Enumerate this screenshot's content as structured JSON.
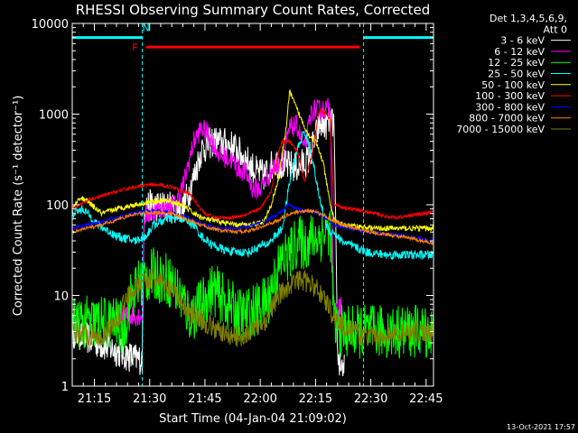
{
  "chart_data": {
    "type": "line",
    "title": "RHESSI Observing Summary Count Rates, Corrected",
    "xlabel": "Start Time (04-Jan-04 21:09:02)",
    "ylabel": "Corrected Count Rate (s⁻¹ detector⁻¹)",
    "x_unit": "minutes after 21:09:02",
    "xlim": [
      0,
      98
    ],
    "ylim": [
      1,
      10000
    ],
    "y_scale": "log",
    "grid": false,
    "legend_position": "top-right outside plot",
    "x_ticks": [
      {
        "pos": 6,
        "label": "21:15"
      },
      {
        "pos": 21,
        "label": "21:30"
      },
      {
        "pos": 36,
        "label": "21:45"
      },
      {
        "pos": 51,
        "label": "22:00"
      },
      {
        "pos": 66,
        "label": "22:15"
      },
      {
        "pos": 81,
        "label": "22:30"
      },
      {
        "pos": 96,
        "label": "22:45"
      }
    ],
    "y_ticks": [
      {
        "value": 1,
        "label": "1"
      },
      {
        "value": 10,
        "label": "10"
      },
      {
        "value": 100,
        "label": "100"
      },
      {
        "value": 1000,
        "label": "1000"
      },
      {
        "value": 10000,
        "label": "10000"
      }
    ],
    "legend_header": [
      "Det 1,3,4,5,6,9,",
      "Att 0"
    ],
    "series": [
      {
        "name": "3 - 6 keV",
        "color": "#ffffff",
        "noise": 0.18,
        "points": [
          [
            0,
            4
          ],
          [
            17,
            2
          ],
          [
            19,
            2
          ],
          [
            19.5,
            100
          ],
          [
            26,
            95
          ],
          [
            30,
            90
          ],
          [
            33,
            200
          ],
          [
            35,
            400
          ],
          [
            38,
            500
          ],
          [
            41,
            480
          ],
          [
            44,
            430
          ],
          [
            47,
            320
          ],
          [
            50,
            230
          ],
          [
            52,
            210
          ],
          [
            55,
            300
          ],
          [
            58,
            270
          ],
          [
            61,
            260
          ],
          [
            64,
            310
          ],
          [
            67,
            750
          ],
          [
            70,
            800
          ],
          [
            71,
            800
          ],
          [
            72,
            2
          ],
          [
            74,
            1.5
          ]
        ]
      },
      {
        "name": "6 - 12 keV",
        "color": "#ff00ff",
        "noise": 0.12,
        "points": [
          [
            12,
            6
          ],
          [
            17,
            6
          ],
          [
            19,
            6
          ],
          [
            19.5,
            75
          ],
          [
            24,
            90
          ],
          [
            28,
            100
          ],
          [
            30,
            160
          ],
          [
            33,
            500
          ],
          [
            35,
            700
          ],
          [
            37,
            600
          ],
          [
            40,
            350
          ],
          [
            43,
            320
          ],
          [
            45,
            250
          ],
          [
            47,
            230
          ],
          [
            49,
            150
          ],
          [
            51,
            150
          ],
          [
            53,
            200
          ],
          [
            55,
            270
          ],
          [
            57,
            300
          ],
          [
            59,
            700
          ],
          [
            61,
            750
          ],
          [
            63,
            400
          ],
          [
            65,
            1100
          ],
          [
            67,
            1100
          ],
          [
            69,
            1150
          ],
          [
            70,
            1200
          ],
          [
            71,
            6
          ],
          [
            73,
            8
          ]
        ]
      },
      {
        "name": "12 - 25 keV",
        "color": "#00ff00",
        "noise": 0.3,
        "points": [
          [
            0,
            5
          ],
          [
            8,
            5
          ],
          [
            12,
            5
          ],
          [
            14,
            4
          ],
          [
            16,
            10
          ],
          [
            19,
            15
          ],
          [
            22,
            17
          ],
          [
            26,
            15
          ],
          [
            28,
            12
          ],
          [
            30,
            9
          ],
          [
            31,
            7
          ],
          [
            32,
            6
          ],
          [
            34,
            7
          ],
          [
            36,
            9
          ],
          [
            38,
            12
          ],
          [
            40,
            10
          ],
          [
            42,
            8
          ],
          [
            44,
            7
          ],
          [
            46,
            6
          ],
          [
            50,
            7
          ],
          [
            53,
            9
          ],
          [
            55,
            16
          ],
          [
            57,
            25
          ],
          [
            59,
            28
          ],
          [
            61,
            40
          ],
          [
            63,
            36
          ],
          [
            65,
            42
          ],
          [
            67,
            45
          ],
          [
            69,
            50
          ],
          [
            70,
            55
          ],
          [
            71,
            5
          ],
          [
            73,
            4
          ],
          [
            98,
            4
          ]
        ]
      },
      {
        "name": "25 - 50 keV",
        "color": "#00ffff",
        "noise": 0.05,
        "points": [
          [
            0,
            80
          ],
          [
            3,
            90
          ],
          [
            7,
            60
          ],
          [
            12,
            45
          ],
          [
            17,
            40
          ],
          [
            20,
            45
          ],
          [
            22,
            60
          ],
          [
            26,
            70
          ],
          [
            30,
            70
          ],
          [
            33,
            60
          ],
          [
            35,
            45
          ],
          [
            38,
            36
          ],
          [
            41,
            32
          ],
          [
            44,
            30
          ],
          [
            48,
            30
          ],
          [
            51,
            35
          ],
          [
            53,
            37
          ],
          [
            55,
            45
          ],
          [
            57,
            55
          ],
          [
            59,
            180
          ],
          [
            61,
            400
          ],
          [
            63,
            650
          ],
          [
            65,
            350
          ],
          [
            67,
            120
          ],
          [
            69,
            60
          ],
          [
            70,
            50
          ],
          [
            71,
            50
          ],
          [
            73,
            40
          ],
          [
            76,
            35
          ],
          [
            80,
            30
          ],
          [
            85,
            28
          ],
          [
            98,
            28
          ]
        ]
      },
      {
        "name": "50 - 100 keV",
        "color": "#ffff00",
        "noise": 0.03,
        "points": [
          [
            0,
            90
          ],
          [
            2,
            120
          ],
          [
            4,
            110
          ],
          [
            8,
            80
          ],
          [
            12,
            90
          ],
          [
            17,
            100
          ],
          [
            22,
            110
          ],
          [
            26,
            110
          ],
          [
            30,
            100
          ],
          [
            33,
            80
          ],
          [
            36,
            70
          ],
          [
            40,
            65
          ],
          [
            44,
            60
          ],
          [
            48,
            60
          ],
          [
            52,
            65
          ],
          [
            54,
            100
          ],
          [
            56,
            200
          ],
          [
            58,
            700
          ],
          [
            59,
            1800
          ],
          [
            60,
            1400
          ],
          [
            62,
            900
          ],
          [
            64,
            600
          ],
          [
            66,
            500
          ],
          [
            68,
            300
          ],
          [
            70,
            100
          ],
          [
            71,
            70
          ],
          [
            73,
            60
          ],
          [
            77,
            58
          ],
          [
            82,
            55
          ],
          [
            92,
            55
          ],
          [
            98,
            55
          ]
        ]
      },
      {
        "name": "100 - 300 keV",
        "color": "#ff0000",
        "noise": 0.02,
        "points": [
          [
            0,
            90
          ],
          [
            4,
            110
          ],
          [
            8,
            125
          ],
          [
            12,
            140
          ],
          [
            16,
            155
          ],
          [
            20,
            165
          ],
          [
            24,
            165
          ],
          [
            28,
            155
          ],
          [
            32,
            130
          ],
          [
            34,
            100
          ],
          [
            36,
            80
          ],
          [
            39,
            72
          ],
          [
            43,
            72
          ],
          [
            47,
            78
          ],
          [
            51,
            90
          ],
          [
            54,
            140
          ],
          [
            56,
            400
          ],
          [
            57,
            500
          ],
          [
            59,
            500
          ],
          [
            61,
            400
          ],
          [
            63,
            180
          ],
          [
            65,
            350
          ],
          [
            67,
            1100
          ],
          [
            69,
            1000
          ],
          [
            70,
            850
          ],
          [
            71,
            100
          ],
          [
            73,
            95
          ],
          [
            77,
            88
          ],
          [
            82,
            80
          ],
          [
            85,
            75
          ],
          [
            88,
            72
          ],
          [
            91,
            75
          ],
          [
            93,
            78
          ],
          [
            96,
            80
          ],
          [
            98,
            85
          ]
        ]
      },
      {
        "name": "300 - 800 keV",
        "color": "#0000ff",
        "noise": 0.02,
        "points": [
          [
            0,
            55
          ],
          [
            4,
            60
          ],
          [
            8,
            65
          ],
          [
            12,
            72
          ],
          [
            16,
            80
          ],
          [
            20,
            85
          ],
          [
            24,
            85
          ],
          [
            28,
            80
          ],
          [
            32,
            70
          ],
          [
            36,
            60
          ],
          [
            40,
            55
          ],
          [
            44,
            55
          ],
          [
            48,
            58
          ],
          [
            52,
            65
          ],
          [
            56,
            80
          ],
          [
            59,
            100
          ],
          [
            61,
            90
          ],
          [
            63,
            85
          ],
          [
            65,
            85
          ],
          [
            67,
            80
          ],
          [
            69,
            70
          ],
          [
            71,
            60
          ],
          [
            75,
            55
          ],
          [
            80,
            50
          ],
          [
            85,
            48
          ],
          [
            90,
            45
          ],
          [
            95,
            42
          ],
          [
            98,
            40
          ]
        ]
      },
      {
        "name": "800 - 7000 keV",
        "color": "#ff8000",
        "noise": 0.02,
        "points": [
          [
            0,
            50
          ],
          [
            4,
            55
          ],
          [
            8,
            60
          ],
          [
            12,
            68
          ],
          [
            16,
            77
          ],
          [
            20,
            82
          ],
          [
            24,
            82
          ],
          [
            28,
            78
          ],
          [
            32,
            66
          ],
          [
            36,
            58
          ],
          [
            40,
            52
          ],
          [
            44,
            50
          ],
          [
            48,
            52
          ],
          [
            52,
            58
          ],
          [
            56,
            68
          ],
          [
            59,
            80
          ],
          [
            62,
            85
          ],
          [
            65,
            85
          ],
          [
            68,
            78
          ],
          [
            70,
            70
          ],
          [
            73,
            60
          ],
          [
            77,
            55
          ],
          [
            81,
            50
          ],
          [
            85,
            47
          ],
          [
            90,
            44
          ],
          [
            95,
            40
          ],
          [
            98,
            38
          ]
        ]
      },
      {
        "name": "7000 - 15000 keV",
        "color": "#808000",
        "noise": 0.12,
        "points": [
          [
            0,
            4
          ],
          [
            8,
            3.5
          ],
          [
            12,
            5
          ],
          [
            15,
            10
          ],
          [
            18,
            13
          ],
          [
            20,
            15
          ],
          [
            22,
            15
          ],
          [
            24,
            14
          ],
          [
            26,
            12
          ],
          [
            28,
            10
          ],
          [
            30,
            8
          ],
          [
            32,
            6.5
          ],
          [
            36,
            5
          ],
          [
            40,
            4
          ],
          [
            44,
            3.5
          ],
          [
            48,
            3.8
          ],
          [
            52,
            5
          ],
          [
            54,
            7
          ],
          [
            56,
            10
          ],
          [
            58,
            12
          ],
          [
            60,
            14
          ],
          [
            62,
            15
          ],
          [
            64,
            14
          ],
          [
            66,
            12
          ],
          [
            68,
            10
          ],
          [
            70,
            7
          ],
          [
            72,
            5
          ],
          [
            76,
            4
          ],
          [
            80,
            3.5
          ],
          [
            85,
            3.5
          ],
          [
            90,
            4
          ],
          [
            95,
            4
          ],
          [
            98,
            4
          ]
        ]
      }
    ],
    "flags": [
      {
        "color": "#00ffff",
        "from": 0,
        "to": 19,
        "level": 7000,
        "dashes_at": [
          0,
          19
        ]
      },
      {
        "color": "#00ffff",
        "from": 79,
        "to": 98,
        "level": 7000,
        "dashes_at": [
          79,
          98
        ]
      },
      {
        "color": "#ff0000",
        "from": 20,
        "to": 78,
        "level": 5500
      }
    ],
    "flag_labels": [
      {
        "text": "F",
        "color": "#ff0000",
        "x": 17,
        "level": 5000
      },
      {
        "text": "N",
        "color": "#00ffff",
        "x": 20,
        "level": 8200
      }
    ]
  },
  "footer": {
    "timestamp": "13-Oct-2021 17:57"
  }
}
